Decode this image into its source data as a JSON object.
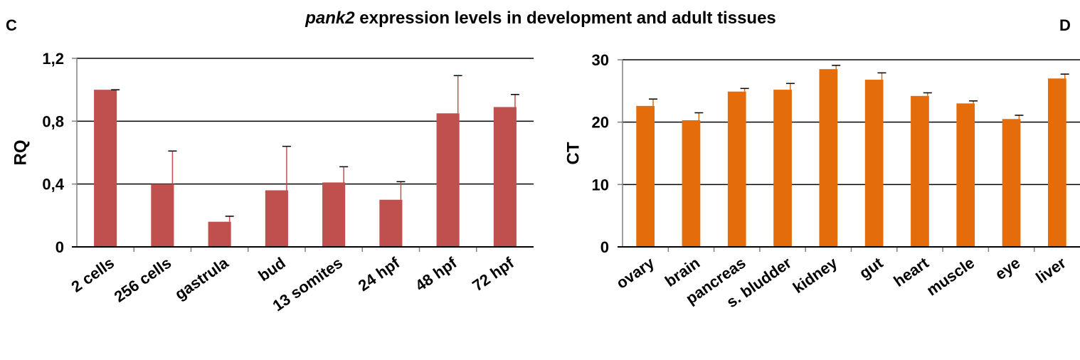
{
  "figure": {
    "title_italic": "pank2",
    "title_rest": " expression levels in development and adult tissues",
    "panel_left": "C",
    "panel_right": "D"
  },
  "chart_data": [
    {
      "type": "bar",
      "panel": "C",
      "ylabel": "RQ",
      "ylim": [
        0,
        1.2
      ],
      "yticks": [
        0,
        0.4,
        0.8,
        1.2
      ],
      "ytick_labels": [
        "0",
        "0,4",
        "0,8",
        "1,2"
      ],
      "grid": true,
      "bar_color": "#c0504d",
      "categories": [
        "2 cells",
        "256 cells",
        "gastrula",
        "bud",
        "13 somites",
        "24 hpf",
        "48 hpf",
        "72 hpf"
      ],
      "values": [
        1.0,
        0.4,
        0.16,
        0.36,
        0.41,
        0.3,
        0.85,
        0.89
      ],
      "errors": [
        0.0,
        0.21,
        0.035,
        0.28,
        0.1,
        0.115,
        0.24,
        0.08
      ]
    },
    {
      "type": "bar",
      "panel": "D",
      "ylabel": "CT",
      "ylim": [
        0,
        30
      ],
      "yticks": [
        0,
        10,
        20,
        30
      ],
      "ytick_labels": [
        "0",
        "10",
        "20",
        "30"
      ],
      "grid": true,
      "bar_color": "#e46c0a",
      "categories": [
        "ovary",
        "brain",
        "pancreas",
        "s. bludder",
        "kidney",
        "gut",
        "heart",
        "muscle",
        "eye",
        "liver"
      ],
      "values": [
        22.6,
        20.3,
        24.9,
        25.2,
        28.5,
        26.8,
        24.2,
        23.0,
        20.5,
        27.0
      ],
      "errors": [
        1.1,
        1.2,
        0.5,
        1.0,
        0.6,
        1.1,
        0.5,
        0.4,
        0.6,
        0.7
      ]
    }
  ]
}
